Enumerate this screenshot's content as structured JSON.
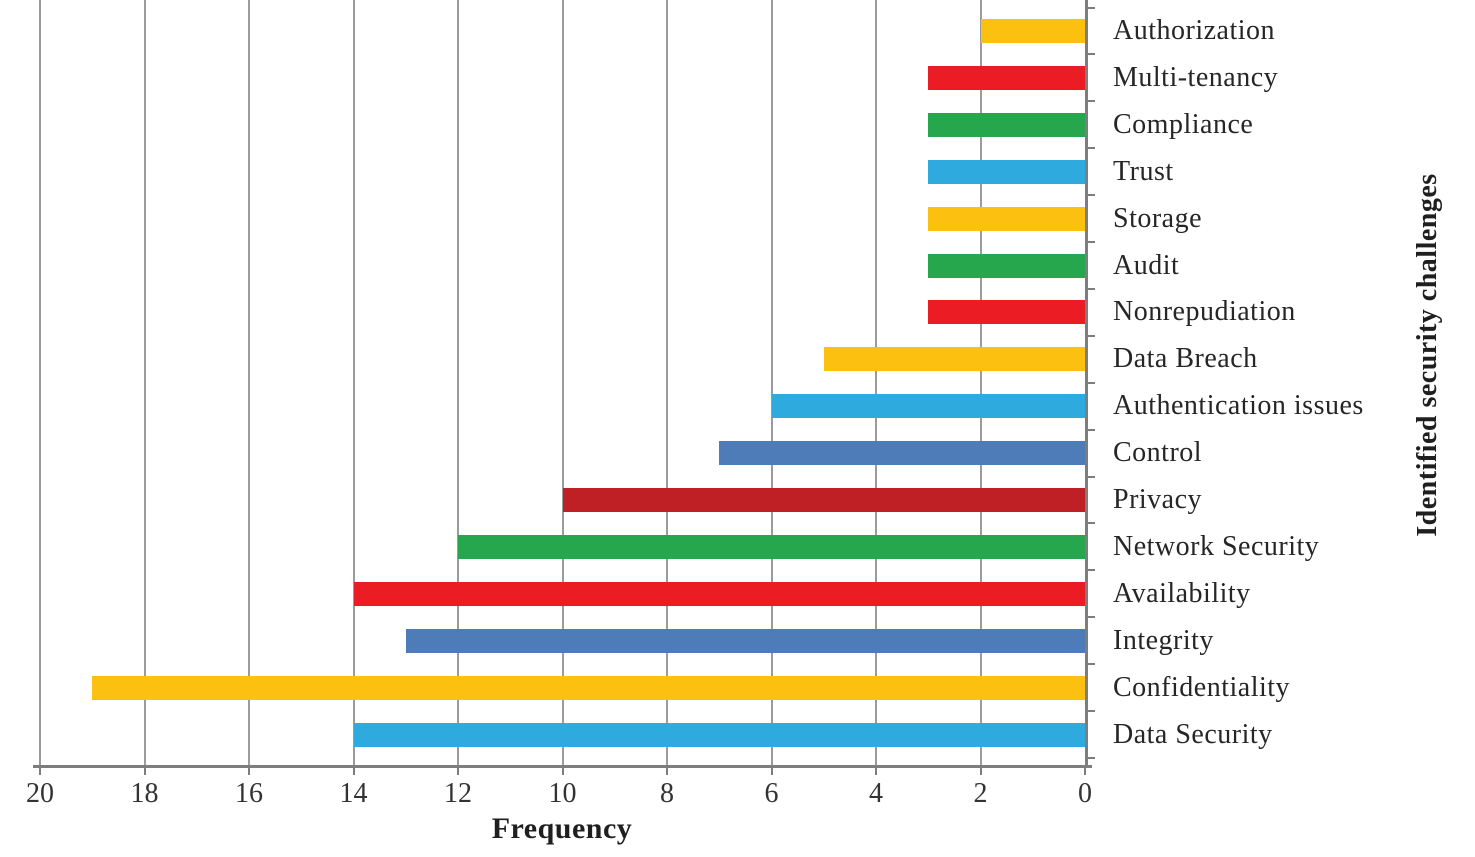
{
  "figure": {
    "background": "#ffffff"
  },
  "chart_data": {
    "type": "bar",
    "orientation": "horizontal",
    "x_axis_reversed": true,
    "title": "",
    "xlabel": "Frequency",
    "ylabel": "Identified security challenges",
    "xlim": [
      0,
      20
    ],
    "x_ticks": [
      20,
      18,
      16,
      14,
      12,
      10,
      8,
      6,
      4,
      2,
      0
    ],
    "grid": true,
    "legend": false,
    "categories": [
      "Authorization",
      "Multi-tenancy",
      "Compliance",
      "Trust",
      "Storage",
      "Audit",
      "Nonrepudiation",
      "Data Breach",
      "Authentication issues",
      "Control",
      "Privacy",
      "Network Security",
      "Availability",
      "Integrity",
      "Confidentiality",
      "Data Security"
    ],
    "values": [
      2,
      3,
      3,
      3,
      3,
      3,
      3,
      5,
      6,
      7,
      10,
      12,
      14,
      13,
      19,
      14
    ],
    "bar_colors": [
      "#FCC110",
      "#EC1C24",
      "#27A74D",
      "#2FAADE",
      "#FCC110",
      "#27A74D",
      "#EC1C24",
      "#FCC110",
      "#2FAADE",
      "#4E7CB8",
      "#BE2026",
      "#27A74D",
      "#EC1C24",
      "#4E7CB8",
      "#FCC110",
      "#2FAADE"
    ],
    "colors": {
      "gridline": "#9B9B9B",
      "axis": "#7D7D7D",
      "tick_text": "#333333",
      "label_text": "#262626",
      "axis_title_text": "#1F1F1F"
    }
  }
}
